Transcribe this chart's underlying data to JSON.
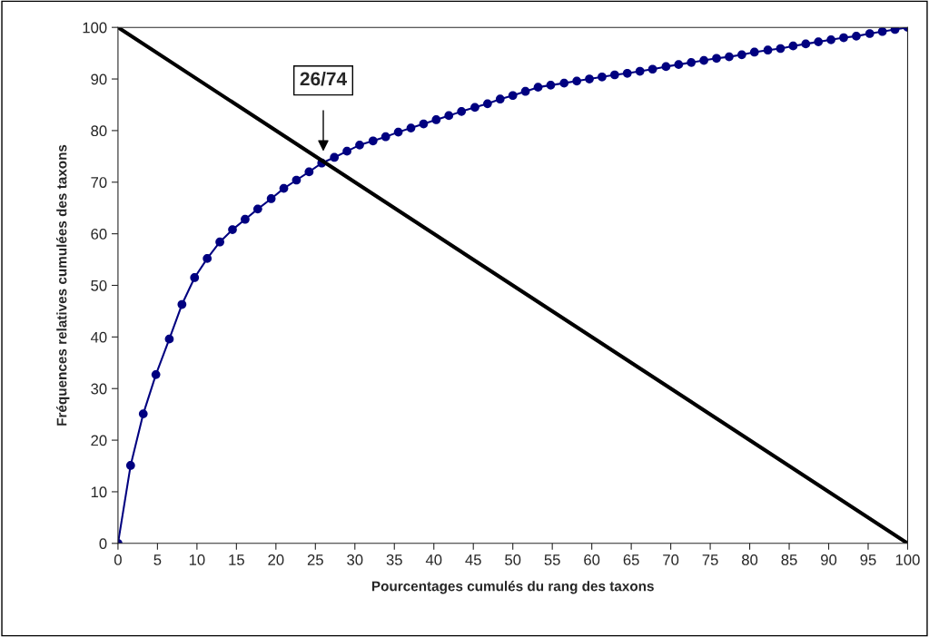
{
  "chart_data": {
    "type": "line",
    "xlabel": "Pourcentages cumulés du rang des taxons",
    "ylabel": "Fréquences relatives cumulées des taxons",
    "xlim": [
      0,
      100
    ],
    "ylim": [
      0,
      100
    ],
    "xticks": [
      0,
      5,
      10,
      15,
      20,
      25,
      30,
      35,
      40,
      45,
      50,
      55,
      60,
      65,
      70,
      75,
      80,
      85,
      90,
      95,
      100
    ],
    "yticks": [
      0,
      10,
      20,
      30,
      40,
      50,
      60,
      70,
      80,
      90,
      100
    ],
    "grid": false,
    "legend": false,
    "series": [
      {
        "color": "#000080",
        "marker": "circle",
        "x": [
          0,
          1.6,
          3.2,
          4.8,
          6.5,
          8.1,
          9.7,
          11.3,
          12.9,
          14.5,
          16.1,
          17.7,
          19.4,
          21.0,
          22.6,
          24.2,
          25.8,
          27.4,
          29.0,
          30.6,
          32.3,
          33.9,
          35.5,
          37.1,
          38.7,
          40.3,
          41.9,
          43.5,
          45.2,
          46.8,
          48.4,
          50.0,
          51.6,
          53.2,
          54.8,
          56.5,
          58.1,
          59.7,
          61.3,
          62.9,
          64.5,
          66.1,
          67.7,
          69.4,
          71.0,
          72.6,
          74.2,
          75.8,
          77.4,
          79.0,
          80.6,
          82.3,
          83.9,
          85.5,
          87.1,
          88.7,
          90.3,
          91.9,
          93.5,
          95.2,
          96.8,
          98.4,
          100
        ],
        "values": [
          0,
          15.1,
          25.1,
          32.7,
          39.6,
          46.3,
          51.5,
          55.2,
          58.4,
          60.8,
          62.8,
          64.8,
          66.8,
          68.8,
          70.4,
          72.0,
          73.7,
          74.8,
          76.0,
          77.2,
          78.0,
          78.8,
          79.7,
          80.5,
          81.3,
          82.1,
          82.9,
          83.7,
          84.5,
          85.2,
          86.1,
          86.8,
          87.6,
          88.4,
          88.8,
          89.2,
          89.6,
          90.0,
          90.4,
          90.8,
          91.1,
          91.5,
          91.9,
          92.4,
          92.8,
          93.2,
          93.6,
          94.0,
          94.3,
          94.7,
          95.2,
          95.6,
          95.9,
          96.4,
          96.8,
          97.2,
          97.6,
          98.0,
          98.3,
          98.8,
          99.2,
          99.6,
          100
        ]
      },
      {
        "color": "#000000",
        "marker": "none",
        "x": [
          0,
          100
        ],
        "values": [
          100,
          0
        ]
      }
    ],
    "annotations": [
      "26/74"
    ]
  }
}
